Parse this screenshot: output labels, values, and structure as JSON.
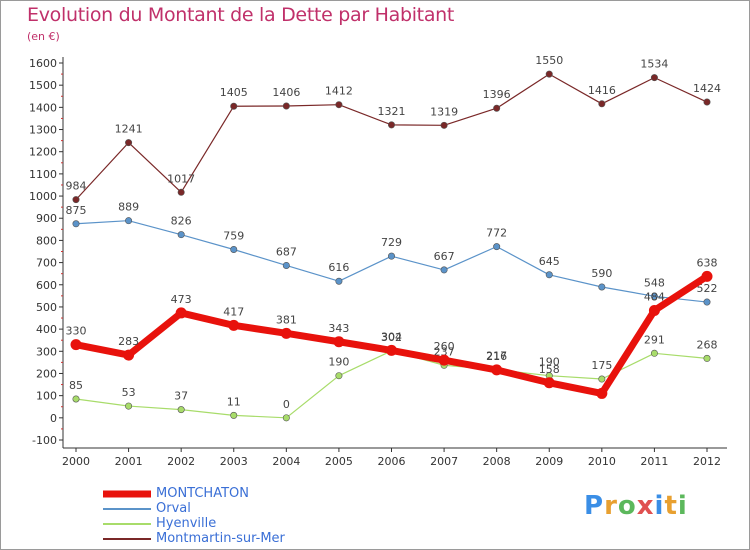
{
  "title": "Evolution du Montant de la Dette par Habitant",
  "unit": "(en €)",
  "logo": {
    "text": "Proxiti",
    "letters": [
      "P",
      "r",
      "o",
      "x",
      "i",
      "t",
      "i"
    ],
    "colors": [
      "#3a8ee6",
      "#e8a030",
      "#5cb85c",
      "#e05050",
      "#3a8ee6",
      "#e8a030",
      "#5cb85c"
    ]
  },
  "chart_data": {
    "type": "line",
    "title": "Evolution du Montant de la Dette par Habitant",
    "ylabel": "(en €)",
    "ylim": [
      -100,
      1600
    ],
    "yticks": [
      -100,
      0,
      100,
      200,
      300,
      400,
      500,
      600,
      700,
      800,
      900,
      1000,
      1100,
      1200,
      1300,
      1400,
      1500,
      1600
    ],
    "categories": [
      "2000",
      "2001",
      "2002",
      "2003",
      "2004",
      "2005",
      "2006",
      "2007",
      "2008",
      "2009",
      "2010",
      "2011",
      "2012"
    ],
    "grid": false,
    "legend": "bottom-left",
    "series": [
      {
        "name": "MONTCHATON",
        "color": "#e8120c",
        "values": [
          330,
          283,
          473,
          417,
          381,
          343,
          304,
          260,
          216,
          158,
          110,
          484,
          638
        ],
        "labels": [
          "330",
          "283",
          "473",
          "417",
          "381",
          "343",
          "304",
          "260",
          "216",
          "158",
          "",
          "484",
          "638"
        ]
      },
      {
        "name": "Orval",
        "color": "#5b93c9",
        "values": [
          875,
          889,
          826,
          759,
          687,
          616,
          729,
          667,
          772,
          645,
          590,
          548,
          522
        ],
        "labels": [
          "875",
          "889",
          "826",
          "759",
          "687",
          "616",
          "729",
          "667",
          "772",
          "645",
          "590",
          "548",
          "522"
        ]
      },
      {
        "name": "Hyenville",
        "color": "#a8dc6a",
        "values": [
          85,
          53,
          37,
          11,
          0,
          190,
          302,
          237,
          217,
          190,
          175,
          291,
          268
        ],
        "labels": [
          "85",
          "53",
          "37",
          "11",
          "0",
          "190",
          "302",
          "237",
          "217",
          "190",
          "175",
          "291",
          "268"
        ]
      },
      {
        "name": "Montmartin-sur-Mer",
        "color": "#7a2828",
        "values": [
          984,
          1241,
          1017,
          1405,
          1406,
          1412,
          1321,
          1319,
          1396,
          1550,
          1416,
          1534,
          1424
        ],
        "labels": [
          "984",
          "1241",
          "1017",
          "1405",
          "1406",
          "1412",
          "1321",
          "1319",
          "1396",
          "1550",
          "1416",
          "1534",
          "1424"
        ]
      }
    ]
  }
}
